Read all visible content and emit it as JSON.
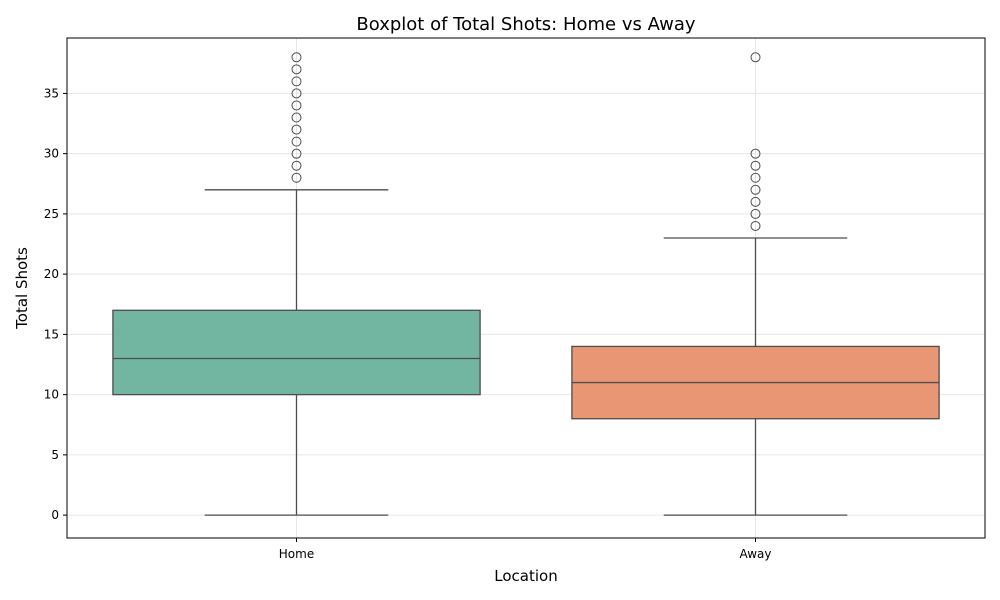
{
  "chart_data": {
    "type": "box",
    "title": "Boxplot of Total Shots: Home vs Away",
    "xlabel": "Location",
    "ylabel": "Total Shots",
    "ylim": [
      -1.9,
      39.6
    ],
    "yticks": [
      0,
      5,
      10,
      15,
      20,
      25,
      30,
      35
    ],
    "grid": true,
    "categories": [
      "Home",
      "Away"
    ],
    "boxes": [
      {
        "category": "Home",
        "color": "#72b6a1",
        "whisker_low": 0,
        "q1": 10,
        "median": 13,
        "q3": 17,
        "whisker_high": 27,
        "outliers": [
          28,
          29,
          30,
          31,
          32,
          33,
          34,
          35,
          36,
          37,
          38
        ]
      },
      {
        "category": "Away",
        "color": "#e99675",
        "whisker_low": 0,
        "q1": 8,
        "median": 11,
        "q3": 14,
        "whisker_high": 23,
        "outliers": [
          24,
          25,
          26,
          27,
          28,
          29,
          30,
          38
        ]
      }
    ]
  }
}
